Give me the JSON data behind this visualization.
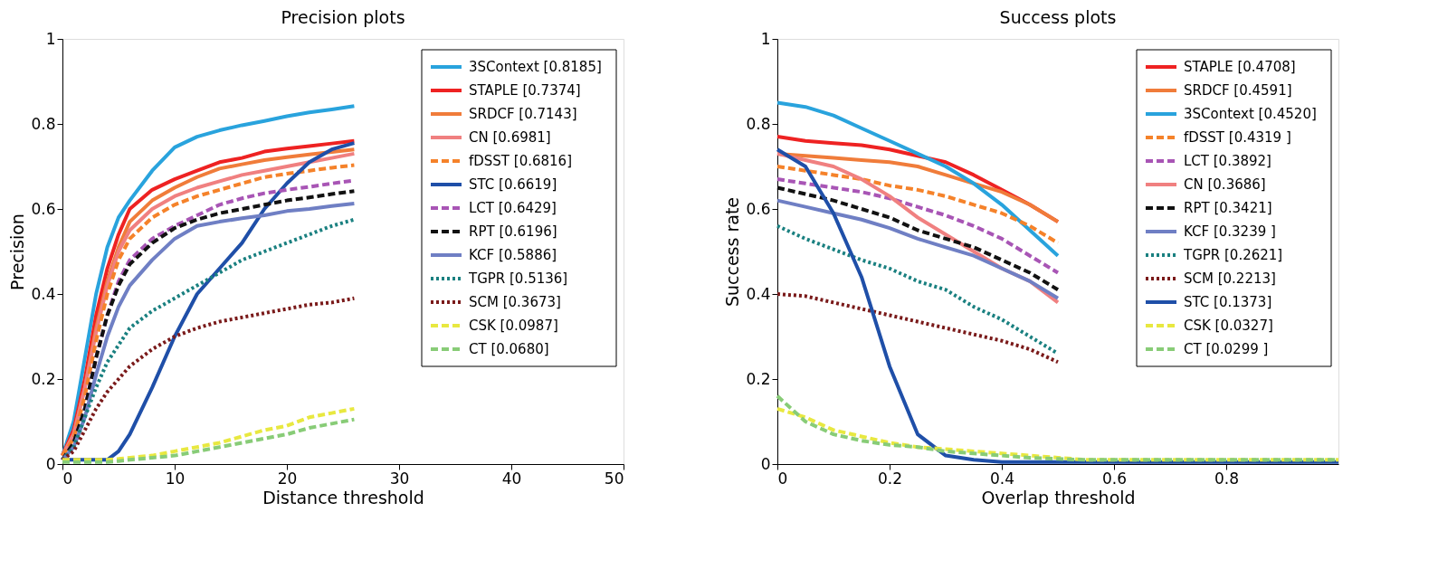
{
  "chart_data": [
    {
      "type": "line",
      "title": "Precision plots",
      "xlabel": "Distance threshold",
      "ylabel": "Precision",
      "x": [
        0,
        1,
        2,
        3,
        4,
        5,
        6,
        8,
        10,
        12,
        14,
        16,
        18,
        20,
        22,
        24,
        26
      ],
      "xlim": [
        0,
        50
      ],
      "xticks": [
        0,
        10,
        20,
        30,
        40,
        50
      ],
      "ylim": [
        0,
        1
      ],
      "yticks": [
        0,
        0.2,
        0.4,
        0.6,
        0.8,
        1
      ],
      "grid": false,
      "legend": "top right",
      "marker": "none",
      "series": [
        {
          "name": "3SContext [0.8185]",
          "color": "#29a3dd",
          "line_style": "solid",
          "values": [
            0.02,
            0.1,
            0.25,
            0.4,
            0.51,
            0.58,
            0.62,
            0.69,
            0.745,
            0.77,
            0.785,
            0.797,
            0.807,
            0.818,
            0.827,
            0.834,
            0.842
          ]
        },
        {
          "name": "STAPLE [0.7374]",
          "color": "#ee2222",
          "line_style": "solid",
          "values": [
            0.02,
            0.08,
            0.2,
            0.35,
            0.46,
            0.54,
            0.6,
            0.645,
            0.67,
            0.69,
            0.71,
            0.72,
            0.735,
            0.742,
            0.748,
            0.754,
            0.76
          ]
        },
        {
          "name": "SRDCF [0.7143]",
          "color": "#f07c3a",
          "line_style": "solid",
          "values": [
            0.02,
            0.07,
            0.18,
            0.32,
            0.43,
            0.51,
            0.57,
            0.62,
            0.65,
            0.675,
            0.695,
            0.705,
            0.715,
            0.722,
            0.728,
            0.734,
            0.74
          ]
        },
        {
          "name": "CN [0.6981]",
          "color": "#f08080",
          "line_style": "solid",
          "values": [
            0.02,
            0.07,
            0.18,
            0.31,
            0.42,
            0.5,
            0.55,
            0.6,
            0.63,
            0.65,
            0.665,
            0.68,
            0.69,
            0.7,
            0.71,
            0.72,
            0.73
          ]
        },
        {
          "name": "fDSST [0.6816]",
          "color": "#f5822a",
          "line_style": "dashed",
          "values": [
            0.02,
            0.06,
            0.16,
            0.29,
            0.4,
            0.48,
            0.53,
            0.58,
            0.61,
            0.63,
            0.645,
            0.66,
            0.675,
            0.683,
            0.69,
            0.697,
            0.703
          ]
        },
        {
          "name": "STC [0.6619]",
          "color": "#1f4fa8",
          "line_style": "solid",
          "values": [
            0.01,
            0.01,
            0.01,
            0.01,
            0.01,
            0.03,
            0.07,
            0.18,
            0.3,
            0.4,
            0.46,
            0.52,
            0.6,
            0.66,
            0.71,
            0.74,
            0.755
          ]
        },
        {
          "name": "LCT [0.6429]",
          "color": "#a855b5",
          "line_style": "dashed",
          "values": [
            0.01,
            0.05,
            0.13,
            0.25,
            0.35,
            0.43,
            0.48,
            0.53,
            0.56,
            0.585,
            0.61,
            0.625,
            0.637,
            0.645,
            0.652,
            0.66,
            0.667
          ]
        },
        {
          "name": "RPT [0.6196]",
          "color": "#111111",
          "line_style": "dashed",
          "values": [
            0.01,
            0.05,
            0.13,
            0.25,
            0.35,
            0.42,
            0.47,
            0.52,
            0.555,
            0.575,
            0.59,
            0.6,
            0.61,
            0.62,
            0.627,
            0.635,
            0.642
          ]
        },
        {
          "name": "KCF [0.5886]",
          "color": "#6f7fc4",
          "line_style": "solid",
          "values": [
            0.01,
            0.04,
            0.11,
            0.21,
            0.3,
            0.37,
            0.42,
            0.48,
            0.53,
            0.56,
            0.57,
            0.578,
            0.585,
            0.595,
            0.6,
            0.607,
            0.613
          ]
        },
        {
          "name": "TGPR [0.5136]",
          "color": "#1a8080",
          "line_style": "dotted",
          "values": [
            0.01,
            0.04,
            0.11,
            0.18,
            0.24,
            0.28,
            0.32,
            0.36,
            0.39,
            0.42,
            0.45,
            0.48,
            0.5,
            0.52,
            0.54,
            0.56,
            0.575
          ]
        },
        {
          "name": "SCM [0.3673]",
          "color": "#7a1a1a",
          "line_style": "dotted",
          "values": [
            0.01,
            0.03,
            0.08,
            0.13,
            0.17,
            0.2,
            0.23,
            0.27,
            0.3,
            0.32,
            0.335,
            0.345,
            0.355,
            0.365,
            0.375,
            0.38,
            0.39
          ]
        },
        {
          "name": "CSK [0.0987]",
          "color": "#e8e840",
          "line_style": "dashed",
          "values": [
            0.01,
            0.01,
            0.01,
            0.01,
            0.01,
            0.012,
            0.015,
            0.02,
            0.03,
            0.04,
            0.05,
            0.065,
            0.08,
            0.09,
            0.11,
            0.12,
            0.13
          ]
        },
        {
          "name": "CT [0.0680]",
          "color": "#88cc77",
          "line_style": "dashed",
          "values": [
            0.005,
            0.005,
            0.005,
            0.005,
            0.005,
            0.007,
            0.01,
            0.015,
            0.02,
            0.03,
            0.04,
            0.05,
            0.06,
            0.07,
            0.085,
            0.095,
            0.105
          ]
        }
      ]
    },
    {
      "type": "line",
      "title": "Success plots",
      "xlabel": "Overlap threshold",
      "ylabel": "Success rate",
      "x": [
        0,
        0.05,
        0.1,
        0.15,
        0.2,
        0.25,
        0.3,
        0.35,
        0.4,
        0.45,
        0.5,
        0.55,
        0.6,
        0.65,
        0.7,
        0.75,
        0.8,
        0.85,
        0.9,
        0.95,
        1
      ],
      "xlim": [
        0,
        1
      ],
      "xticks": [
        0,
        0.2,
        0.4,
        0.6,
        0.8
      ],
      "ylim": [
        0,
        1
      ],
      "yticks": [
        0,
        0.2,
        0.4,
        0.6,
        0.8,
        1
      ],
      "grid": false,
      "legend": "top right",
      "marker": "none",
      "series": [
        {
          "name": "STAPLE [0.4708]",
          "color": "#ee2222",
          "line_style": "solid",
          "values": [
            0.77,
            0.76,
            0.755,
            0.75,
            0.74,
            0.725,
            0.71,
            0.68,
            0.645,
            0.61,
            0.57,
            null,
            null,
            null,
            null,
            null,
            null,
            null,
            null,
            null,
            null
          ]
        },
        {
          "name": "SRDCF [0.4591]",
          "color": "#f07c3a",
          "line_style": "solid",
          "values": [
            0.73,
            0.725,
            0.72,
            0.715,
            0.71,
            0.7,
            0.68,
            0.66,
            0.64,
            0.61,
            0.57,
            null,
            null,
            null,
            null,
            null,
            null,
            null,
            null,
            null,
            null
          ]
        },
        {
          "name": "3SContext [0.4520]",
          "color": "#29a3dd",
          "line_style": "solid",
          "values": [
            0.85,
            0.84,
            0.82,
            0.79,
            0.76,
            0.73,
            0.7,
            0.66,
            0.61,
            0.55,
            0.49,
            null,
            null,
            null,
            null,
            null,
            null,
            null,
            null,
            null,
            null
          ]
        },
        {
          "name": "fDSST [0.4319 ]",
          "color": "#f5822a",
          "line_style": "dashed",
          "values": [
            0.7,
            0.69,
            0.68,
            0.67,
            0.655,
            0.645,
            0.63,
            0.61,
            0.59,
            0.56,
            0.52,
            null,
            null,
            null,
            null,
            null,
            null,
            null,
            null,
            null,
            null
          ]
        },
        {
          "name": "LCT [0.3892]",
          "color": "#a855b5",
          "line_style": "dashed",
          "values": [
            0.67,
            0.66,
            0.65,
            0.64,
            0.625,
            0.605,
            0.585,
            0.56,
            0.53,
            0.49,
            0.45,
            null,
            null,
            null,
            null,
            null,
            null,
            null,
            null,
            null,
            null
          ]
        },
        {
          "name": "CN [0.3686]",
          "color": "#f08080",
          "line_style": "solid",
          "values": [
            0.73,
            0.715,
            0.7,
            0.67,
            0.63,
            0.58,
            0.54,
            0.5,
            0.46,
            0.43,
            0.38,
            null,
            null,
            null,
            null,
            null,
            null,
            null,
            null,
            null,
            null
          ]
        },
        {
          "name": "RPT [0.3421]",
          "color": "#111111",
          "line_style": "dashed",
          "values": [
            0.65,
            0.635,
            0.62,
            0.6,
            0.58,
            0.55,
            0.53,
            0.51,
            0.48,
            0.45,
            0.41,
            null,
            null,
            null,
            null,
            null,
            null,
            null,
            null,
            null,
            null
          ]
        },
        {
          "name": "KCF [0.3239 ]",
          "color": "#6f7fc4",
          "line_style": "solid",
          "values": [
            0.62,
            0.605,
            0.59,
            0.575,
            0.555,
            0.53,
            0.51,
            0.49,
            0.46,
            0.43,
            0.39,
            null,
            null,
            null,
            null,
            null,
            null,
            null,
            null,
            null,
            null
          ]
        },
        {
          "name": "TGPR [0.2621]",
          "color": "#1a8080",
          "line_style": "dotted",
          "values": [
            0.56,
            0.53,
            0.505,
            0.48,
            0.46,
            0.43,
            0.41,
            0.37,
            0.34,
            0.3,
            0.26,
            null,
            null,
            null,
            null,
            null,
            null,
            null,
            null,
            null,
            null
          ]
        },
        {
          "name": "SCM [0.2213]",
          "color": "#7a1a1a",
          "line_style": "dotted",
          "values": [
            0.4,
            0.395,
            0.38,
            0.365,
            0.35,
            0.335,
            0.32,
            0.305,
            0.29,
            0.27,
            0.24,
            null,
            null,
            null,
            null,
            null,
            null,
            null,
            null,
            null,
            null
          ]
        },
        {
          "name": "STC [0.1373]",
          "color": "#1f4fa8",
          "line_style": "solid",
          "values": [
            0.74,
            0.7,
            0.59,
            0.44,
            0.23,
            0.07,
            0.02,
            0.01,
            0.005,
            0.005,
            0.005,
            0.005,
            0.005,
            0.005,
            0.005,
            0.005,
            0.005,
            0.005,
            0.005,
            0.005,
            0.005
          ]
        },
        {
          "name": "CSK [0.0327]",
          "color": "#e8e840",
          "line_style": "dashed",
          "values": [
            0.13,
            0.11,
            0.08,
            0.065,
            0.05,
            0.04,
            0.035,
            0.03,
            0.025,
            0.02,
            0.015,
            0.01,
            0.01,
            0.01,
            0.01,
            0.01,
            0.01,
            0.01,
            0.01,
            0.01,
            0.01
          ]
        },
        {
          "name": "CT [0.0299 ]",
          "color": "#88cc77",
          "line_style": "dashed",
          "values": [
            0.16,
            0.1,
            0.07,
            0.055,
            0.045,
            0.04,
            0.03,
            0.025,
            0.02,
            0.015,
            0.012,
            0.01,
            0.01,
            0.01,
            0.01,
            0.01,
            0.01,
            0.01,
            0.01,
            0.01,
            0.01
          ]
        }
      ]
    }
  ]
}
